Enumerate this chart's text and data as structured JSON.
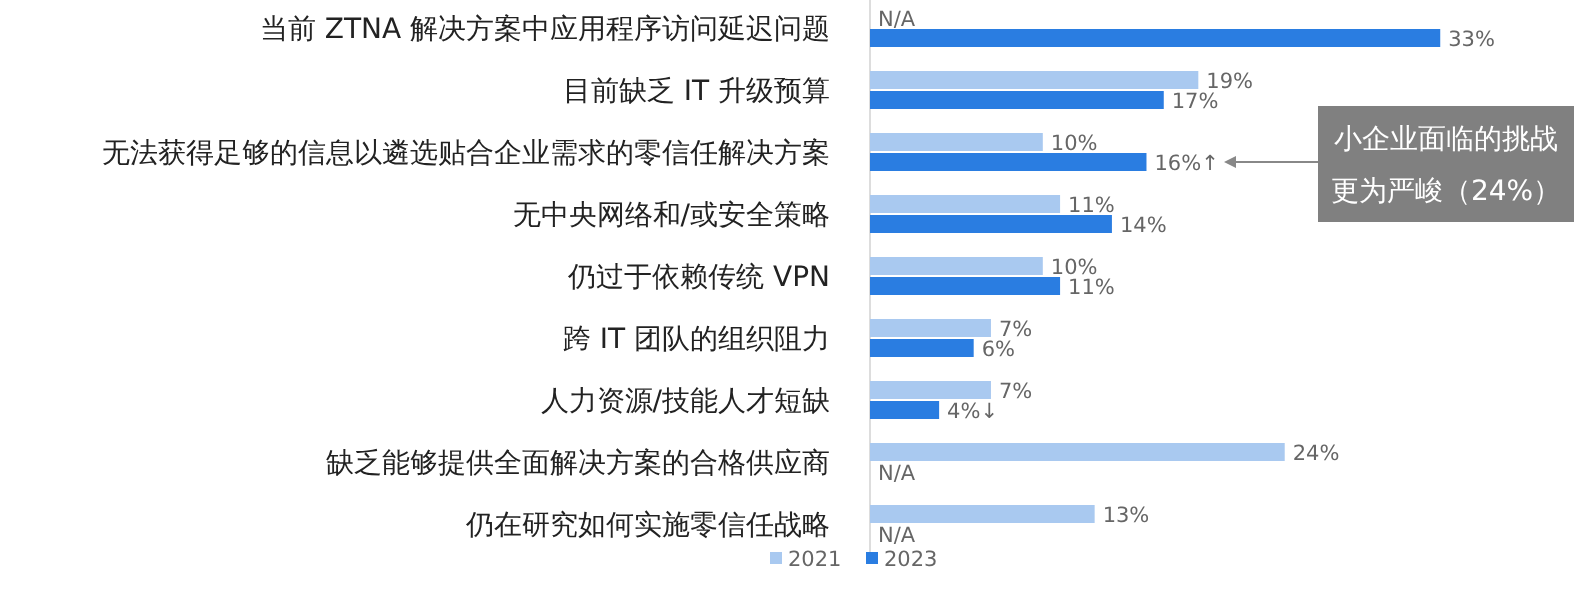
{
  "chart_data": {
    "type": "bar",
    "orientation": "horizontal",
    "legend": "bottom",
    "categories": [
      "当前 ZTNA 解决方案中应用程序访问延迟问题",
      "目前缺乏 IT 升级预算",
      "无法获得足够的信息以遴选贴合企业需求的零信任解决方案",
      "无中央网络和/或安全策略",
      "仍过于依赖传统 VPN",
      "跨 IT 团队的组织阻力",
      "人力资源/技能人才短缺",
      "缺乏能够提供全面解决方案的合格供应商",
      "仍在研究如何实施零信任战略"
    ],
    "series": [
      {
        "name": "2021",
        "color": "#a9c9f0",
        "values": [
          null,
          19,
          10,
          11,
          10,
          7,
          7,
          24,
          13
        ],
        "value_labels": [
          "N/A",
          "19%",
          "10%",
          "11%",
          "10%",
          "7%",
          "7%",
          "24%",
          "13%"
        ]
      },
      {
        "name": "2023",
        "color": "#2a7de1",
        "values": [
          33,
          17,
          16,
          14,
          11,
          6,
          4,
          null,
          null
        ],
        "value_labels": [
          "33%",
          "17%",
          "16%↑",
          "14%",
          "11%",
          "6%",
          "4%↓",
          "N/A",
          "N/A"
        ]
      }
    ],
    "annotations": [
      "小企业面临的挑战更为严峻（24%）"
    ]
  }
}
